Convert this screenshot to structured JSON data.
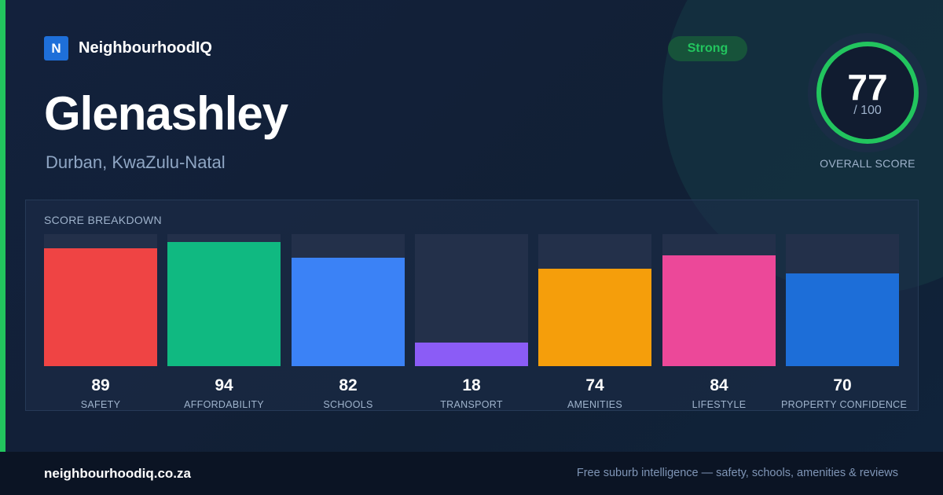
{
  "brand": {
    "logo_letter": "N",
    "name": "NeighbourhoodIQ"
  },
  "suburb": {
    "name": "Glenashley",
    "location": "Durban, KwaZulu-Natal"
  },
  "badge": {
    "label": "Strong",
    "color": "#22c55e"
  },
  "overall": {
    "score": "77",
    "max_label": "/ 100",
    "score_max": 100,
    "caption": "OVERALL SCORE",
    "ring_color": "#22c55e"
  },
  "breakdown": {
    "title": "SCORE BREAKDOWN"
  },
  "chart_data": {
    "type": "bar",
    "categories": [
      "SAFETY",
      "AFFORDABILITY",
      "SCHOOLS",
      "TRANSPORT",
      "AMENITIES",
      "LIFESTYLE",
      "PROPERTY CONFIDENCE"
    ],
    "values": [
      89,
      94,
      82,
      18,
      74,
      84,
      70
    ],
    "colors": [
      "#ef4444",
      "#10b981",
      "#3b82f6",
      "#8b5cf6",
      "#f59e0b",
      "#ec4899",
      "#1d6ed8"
    ],
    "ylim": [
      0,
      100
    ],
    "title": "",
    "xlabel": "",
    "ylabel": "",
    "grid": false
  },
  "footer": {
    "site": "neighbourhoodiq.co.za",
    "tagline": "Free suburb intelligence — safety, schools, amenities & reviews"
  }
}
